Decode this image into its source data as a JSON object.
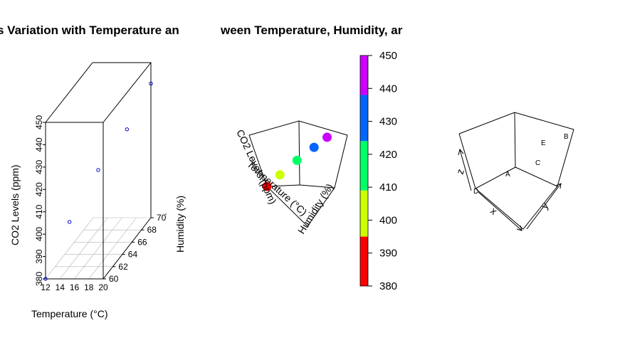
{
  "chart_data": [
    {
      "type": "scatter",
      "subtype": "3d-scatter",
      "title": "s Variation with Temperature an",
      "xlabel": "Temperature (°C)",
      "ylabel": "Humidity (%)",
      "zlabel": "CO2 Levels (ppm)",
      "xticks": [
        "12",
        "14",
        "16",
        "18",
        "20"
      ],
      "yticks": [
        "60",
        "62",
        "64",
        "66",
        "68",
        "70"
      ],
      "zticks": [
        "380",
        "390",
        "400",
        "410",
        "420",
        "430",
        "440",
        "450"
      ],
      "xlim": [
        12,
        20
      ],
      "ylim": [
        60,
        70
      ],
      "zlim": [
        380,
        450
      ],
      "points": [
        {
          "x": 12,
          "y": 60,
          "z": 380
        },
        {
          "x": 14,
          "y": 62,
          "z": 400
        },
        {
          "x": 16,
          "y": 65,
          "z": 415
        },
        {
          "x": 18,
          "y": 68,
          "z": 425
        },
        {
          "x": 20,
          "y": 70,
          "z": 440
        }
      ],
      "point_color": "#0000cd",
      "grid": true
    },
    {
      "type": "scatter",
      "subtype": "3d-scatter-colored",
      "title": "ween Temperature, Humidity, ar",
      "xlabel": "Temperature (°C)",
      "ylabel": "Humidity (%)",
      "zlabel": "CO2 Levels (ppm)",
      "colorbar": {
        "ticks": [
          "380",
          "390",
          "400",
          "410",
          "420",
          "430",
          "440",
          "450"
        ],
        "range": [
          380,
          450
        ],
        "bands": [
          {
            "from": 380,
            "to": 395,
            "color": "#ff0000"
          },
          {
            "from": 395,
            "to": 409,
            "color": "#ccff00"
          },
          {
            "from": 409,
            "to": 424,
            "color": "#00ff66"
          },
          {
            "from": 424,
            "to": 438,
            "color": "#0066ff"
          },
          {
            "from": 438,
            "to": 450,
            "color": "#cc00ff"
          }
        ]
      },
      "points": [
        {
          "x": 12,
          "y": 60,
          "z": 380
        },
        {
          "x": 14,
          "y": 62,
          "z": 400
        },
        {
          "x": 16,
          "y": 65,
          "z": 415
        },
        {
          "x": 18,
          "y": 68,
          "z": 425
        },
        {
          "x": 20,
          "y": 70,
          "z": 440
        }
      ]
    },
    {
      "type": "scatter",
      "subtype": "3d-text-labels",
      "xlabel": "x",
      "ylabel": "y",
      "zlabel": "z",
      "labels": [
        "A",
        "C",
        "E",
        "B",
        "D"
      ]
    }
  ]
}
